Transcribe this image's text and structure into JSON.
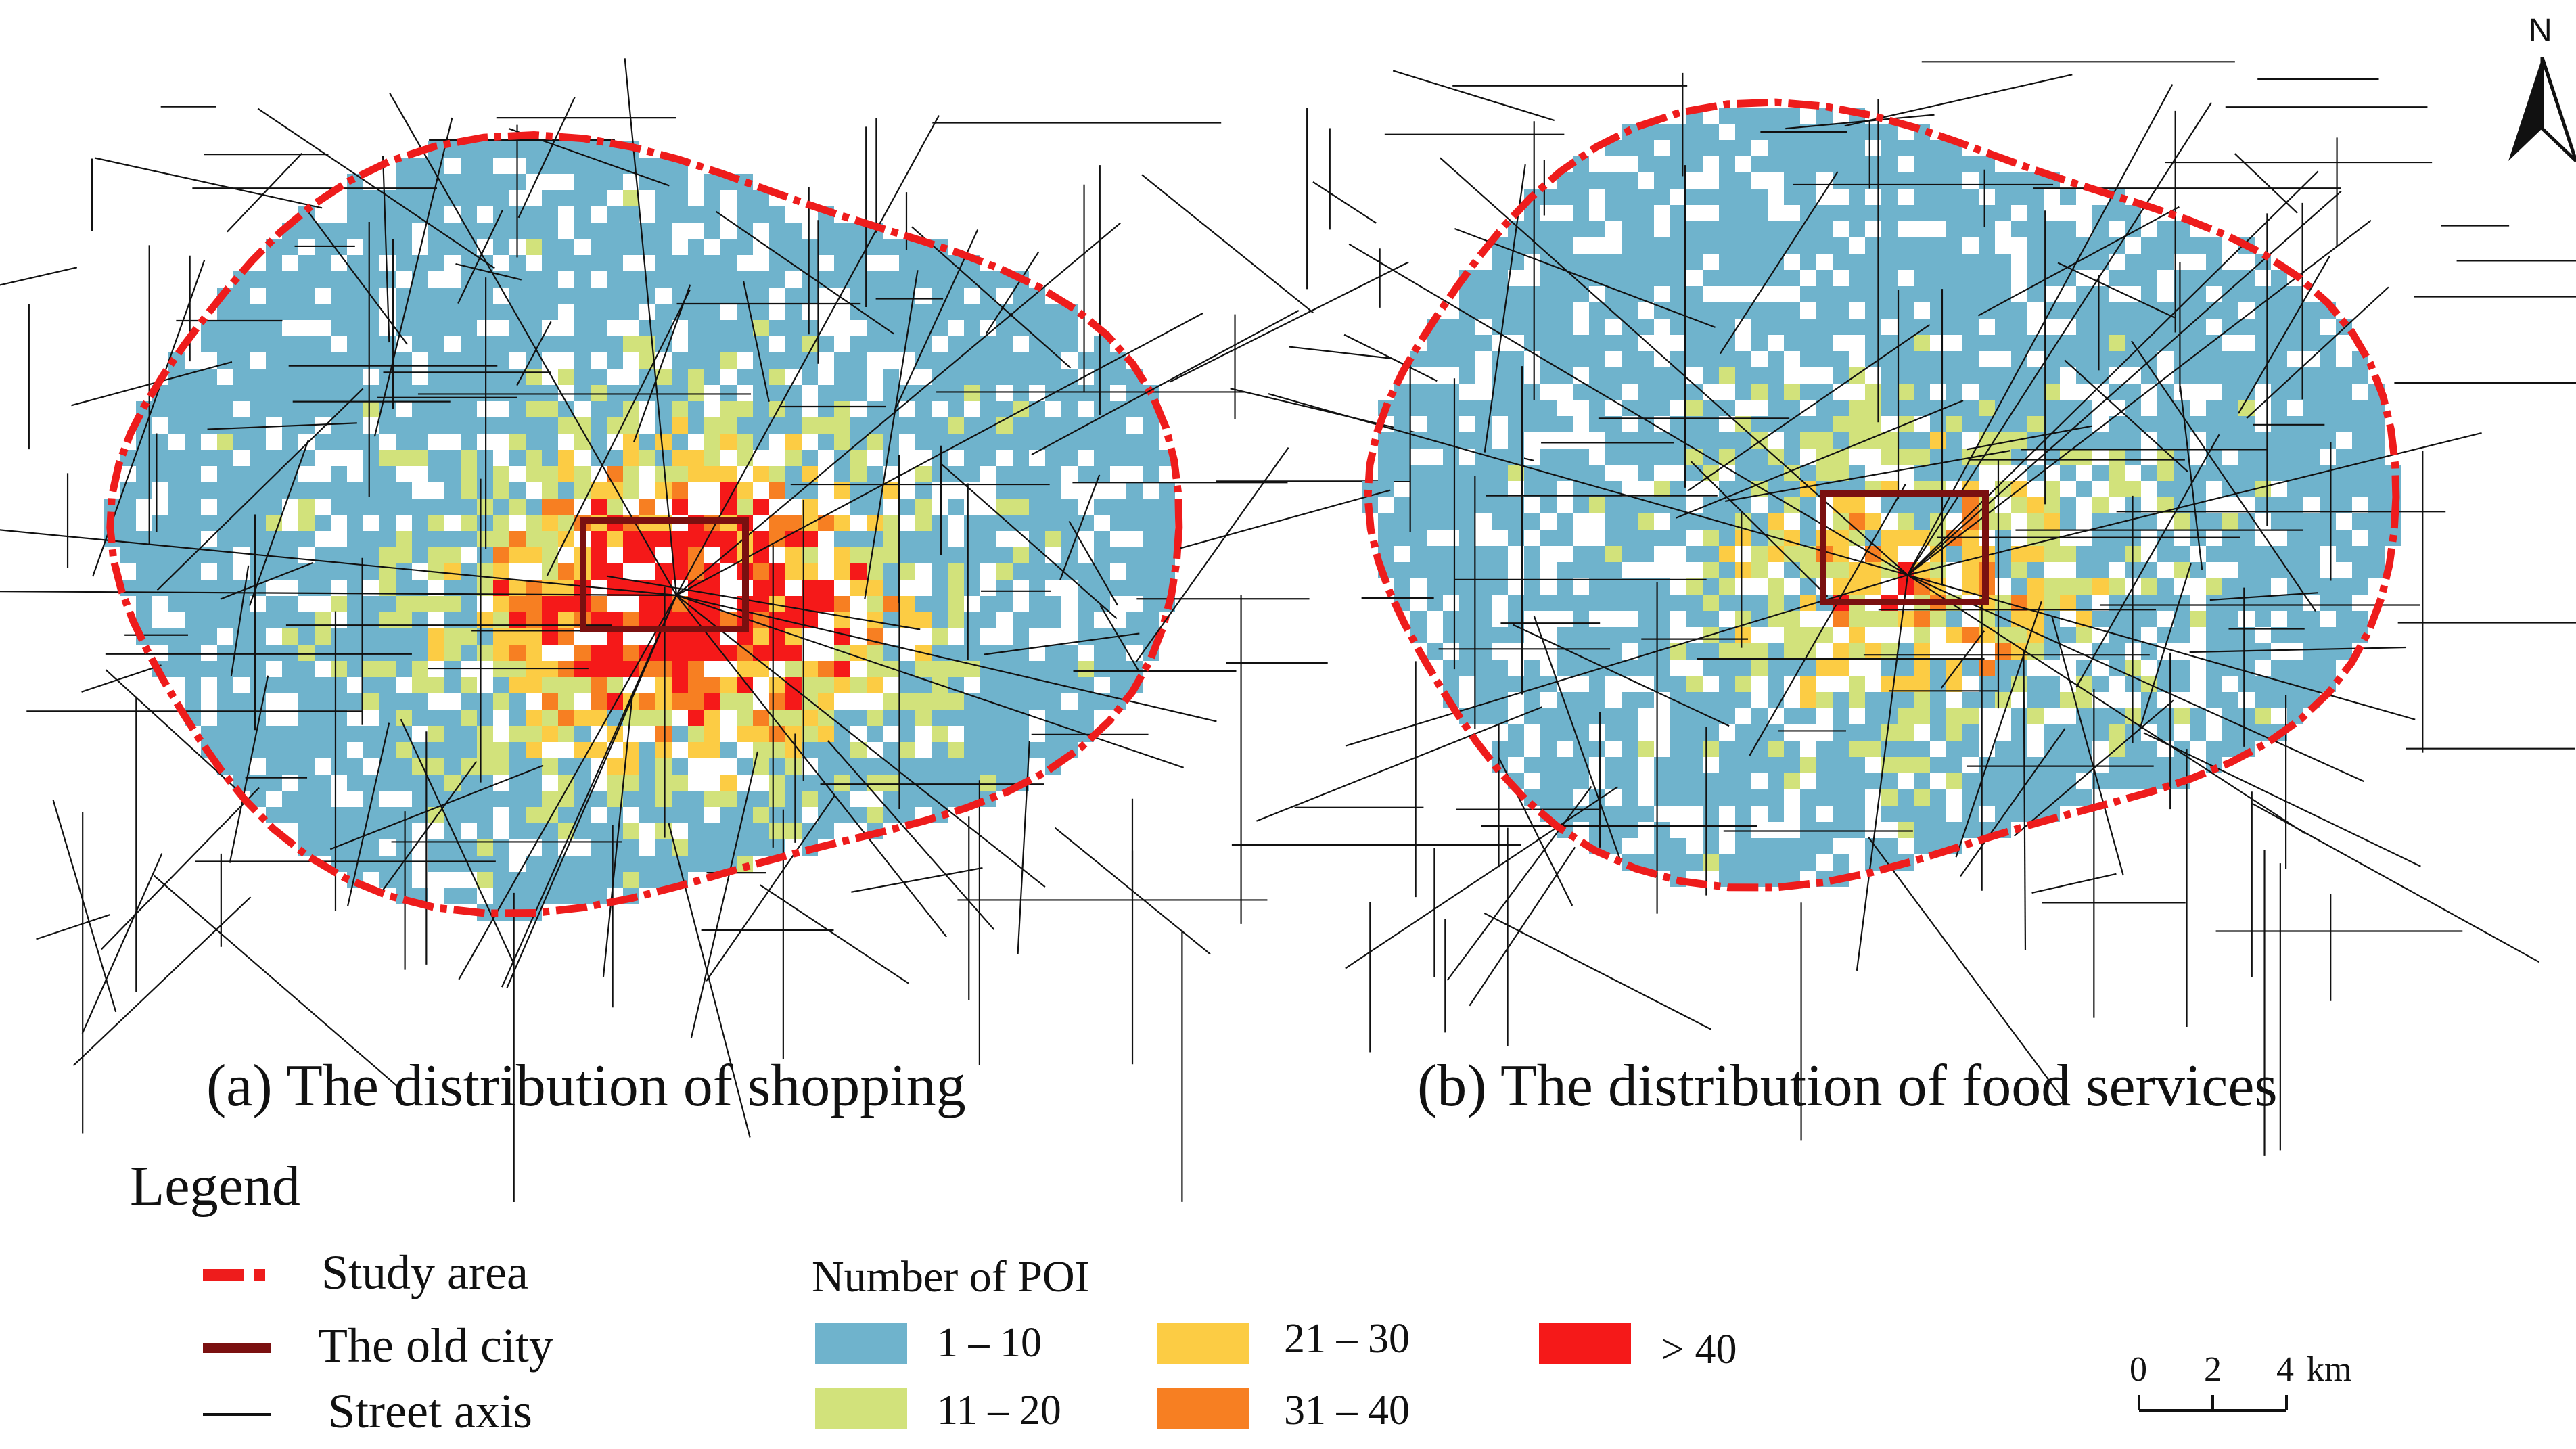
{
  "maps": [
    {
      "id": "a",
      "caption": "(a)  The  distribution of shopping",
      "pattern": "shopping"
    },
    {
      "id": "b",
      "caption": "(b)  The  distribution of food services",
      "pattern": "food"
    }
  ],
  "legend": {
    "title": "Legend",
    "items": [
      {
        "label": "Study area",
        "color": "#ee1c1c"
      },
      {
        "label": "The old city",
        "color": "#7a1010"
      },
      {
        "label": "Street axis",
        "color": "#111111"
      }
    ],
    "poi": {
      "title": "Number of POI",
      "classes": [
        {
          "label": "1 – 10",
          "color": "#6fb3cc"
        },
        {
          "label": "11 – 20",
          "color": "#d2e27b"
        },
        {
          "label": "21 – 30",
          "color": "#fccc44"
        },
        {
          "label": "31 – 40",
          "color": "#f77f22"
        },
        {
          "label": "> 40",
          "color": "#f51919"
        }
      ]
    }
  },
  "scale_bar": {
    "ticks": [
      "0",
      "2",
      "4"
    ],
    "unit": "km"
  },
  "north_arrow": {
    "label": "N"
  }
}
